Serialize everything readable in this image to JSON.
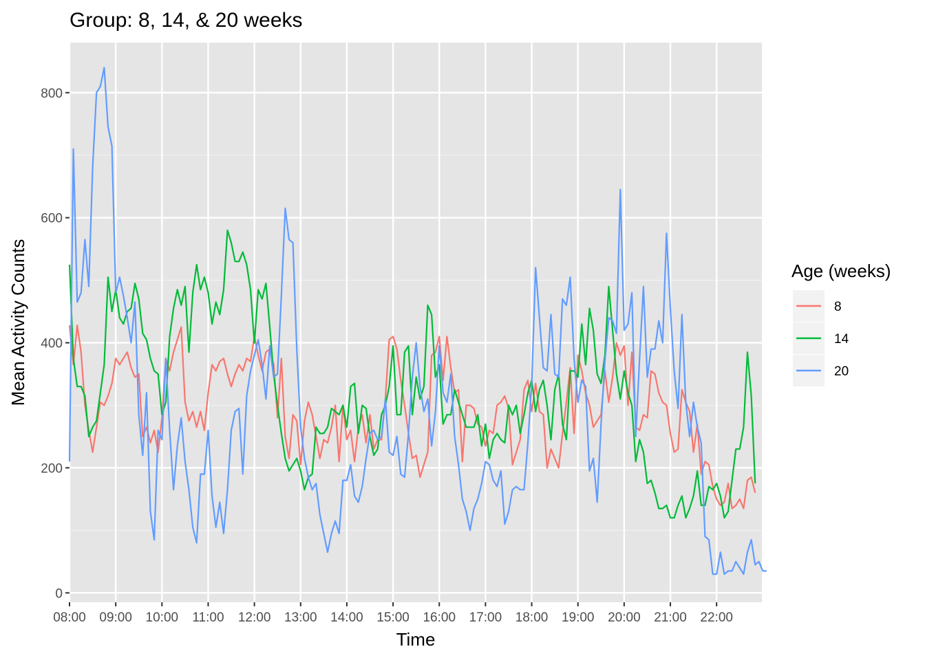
{
  "chart_data": {
    "type": "line",
    "title": "Group: 8, 14, & 20 weeks",
    "xlabel": "Time",
    "ylabel": "Mean Activity Counts",
    "x_ticks": [
      "08:00",
      "09:00",
      "10:00",
      "11:00",
      "12:00",
      "13:00",
      "14:00",
      "15:00",
      "16:00",
      "17:00",
      "18:00",
      "19:00",
      "20:00",
      "21:00",
      "22:00"
    ],
    "y_ticks": [
      0,
      200,
      400,
      600,
      800
    ],
    "xlim_hours": [
      8.0,
      22.98
    ],
    "ylim": [
      -15,
      880
    ],
    "grid": true,
    "panel_background": "#E5E5E5",
    "legend": {
      "title": "Age (weeks)",
      "position": "right"
    },
    "sample_interval_minutes": 5,
    "series": [
      {
        "name": "8",
        "color": "#F8766D",
        "values": [
          428,
          365,
          428,
          385,
          300,
          260,
          225,
          265,
          305,
          300,
          315,
          335,
          375,
          365,
          375,
          385,
          360,
          345,
          350,
          250,
          265,
          240,
          260,
          225,
          280,
          375,
          355,
          385,
          405,
          425,
          305,
          275,
          290,
          265,
          290,
          260,
          320,
          365,
          355,
          370,
          375,
          350,
          330,
          350,
          365,
          355,
          375,
          370,
          410,
          380,
          355,
          385,
          390,
          365,
          280,
          375,
          250,
          215,
          285,
          275,
          205,
          275,
          305,
          285,
          250,
          215,
          245,
          240,
          265,
          300,
          210,
          300,
          245,
          260,
          210,
          265,
          285,
          240,
          285,
          230,
          245,
          245,
          310,
          405,
          410,
          390,
          340,
          300,
          255,
          215,
          220,
          185,
          205,
          225,
          380,
          385,
          410,
          340,
          410,
          360,
          320,
          325,
          210,
          300,
          300,
          295,
          270,
          265,
          235,
          260,
          255,
          300,
          305,
          315,
          295,
          205,
          225,
          245,
          325,
          340,
          290,
          335,
          290,
          285,
          200,
          230,
          215,
          200,
          255,
          305,
          360,
          255,
          380,
          355,
          320,
          300,
          265,
          275,
          285,
          355,
          305,
          345,
          400,
          380,
          395,
          300,
          385,
          265,
          260,
          285,
          280,
          355,
          350,
          320,
          305,
          300,
          255,
          225,
          230,
          325,
          305,
          290,
          225,
          270,
          190,
          210,
          205,
          170,
          150,
          140,
          145,
          175,
          135,
          140,
          150,
          135,
          180,
          185,
          160
        ]
      },
      {
        "name": "14",
        "color": "#00BA38",
        "values": [
          525,
          375,
          330,
          330,
          315,
          250,
          265,
          275,
          320,
          365,
          505,
          450,
          485,
          440,
          430,
          450,
          455,
          495,
          470,
          415,
          405,
          375,
          355,
          350,
          285,
          305,
          410,
          455,
          485,
          460,
          490,
          385,
          480,
          525,
          485,
          505,
          480,
          430,
          465,
          445,
          485,
          580,
          560,
          530,
          530,
          545,
          525,
          485,
          400,
          485,
          470,
          495,
          425,
          350,
          300,
          255,
          215,
          195,
          205,
          215,
          195,
          165,
          185,
          190,
          265,
          255,
          255,
          265,
          295,
          290,
          285,
          300,
          265,
          330,
          335,
          255,
          300,
          295,
          250,
          220,
          230,
          285,
          300,
          330,
          395,
          285,
          285,
          385,
          395,
          285,
          345,
          310,
          330,
          460,
          445,
          345,
          365,
          270,
          285,
          285,
          325,
          305,
          285,
          265,
          265,
          265,
          285,
          235,
          270,
          215,
          245,
          255,
          245,
          240,
          300,
          285,
          300,
          255,
          285,
          320,
          340,
          290,
          325,
          340,
          300,
          245,
          325,
          350,
          270,
          245,
          355,
          355,
          345,
          430,
          365,
          455,
          420,
          350,
          335,
          380,
          490,
          420,
          350,
          310,
          355,
          320,
          300,
          210,
          245,
          225,
          175,
          180,
          160,
          135,
          135,
          140,
          120,
          120,
          140,
          155,
          120,
          135,
          155,
          195,
          140,
          140,
          170,
          165,
          175,
          155,
          120,
          130,
          180,
          230,
          230,
          265,
          385,
          315,
          175
        ]
      },
      {
        "name": "20",
        "color": "#619CFF",
        "values": [
          210,
          710,
          465,
          480,
          565,
          490,
          680,
          800,
          810,
          840,
          745,
          715,
          480,
          505,
          475,
          440,
          400,
          465,
          285,
          220,
          320,
          130,
          85,
          260,
          245,
          375,
          260,
          165,
          235,
          280,
          210,
          165,
          105,
          80,
          190,
          190,
          260,
          155,
          105,
          145,
          95,
          165,
          260,
          290,
          295,
          190,
          315,
          355,
          380,
          405,
          365,
          310,
          395,
          345,
          350,
          475,
          615,
          565,
          560,
          390,
          265,
          215,
          185,
          165,
          175,
          125,
          95,
          65,
          95,
          115,
          95,
          180,
          180,
          205,
          155,
          145,
          170,
          215,
          255,
          260,
          245,
          250,
          310,
          225,
          220,
          250,
          190,
          185,
          255,
          345,
          400,
          330,
          290,
          310,
          235,
          290,
          395,
          320,
          305,
          350,
          250,
          205,
          150,
          130,
          100,
          135,
          150,
          175,
          210,
          205,
          180,
          170,
          195,
          110,
          130,
          165,
          170,
          165,
          165,
          240,
          335,
          520,
          440,
          360,
          355,
          445,
          350,
          345,
          470,
          460,
          505,
          375,
          305,
          340,
          330,
          195,
          215,
          145,
          270,
          370,
          440,
          435,
          415,
          645,
          420,
          430,
          480,
          250,
          375,
          490,
          345,
          390,
          390,
          435,
          400,
          575,
          455,
          355,
          295,
          445,
          305,
          250,
          305,
          265,
          240,
          90,
          85,
          30,
          30,
          65,
          30,
          35,
          35,
          50,
          40,
          30,
          65,
          85,
          45,
          50,
          35,
          35
        ]
      }
    ]
  }
}
